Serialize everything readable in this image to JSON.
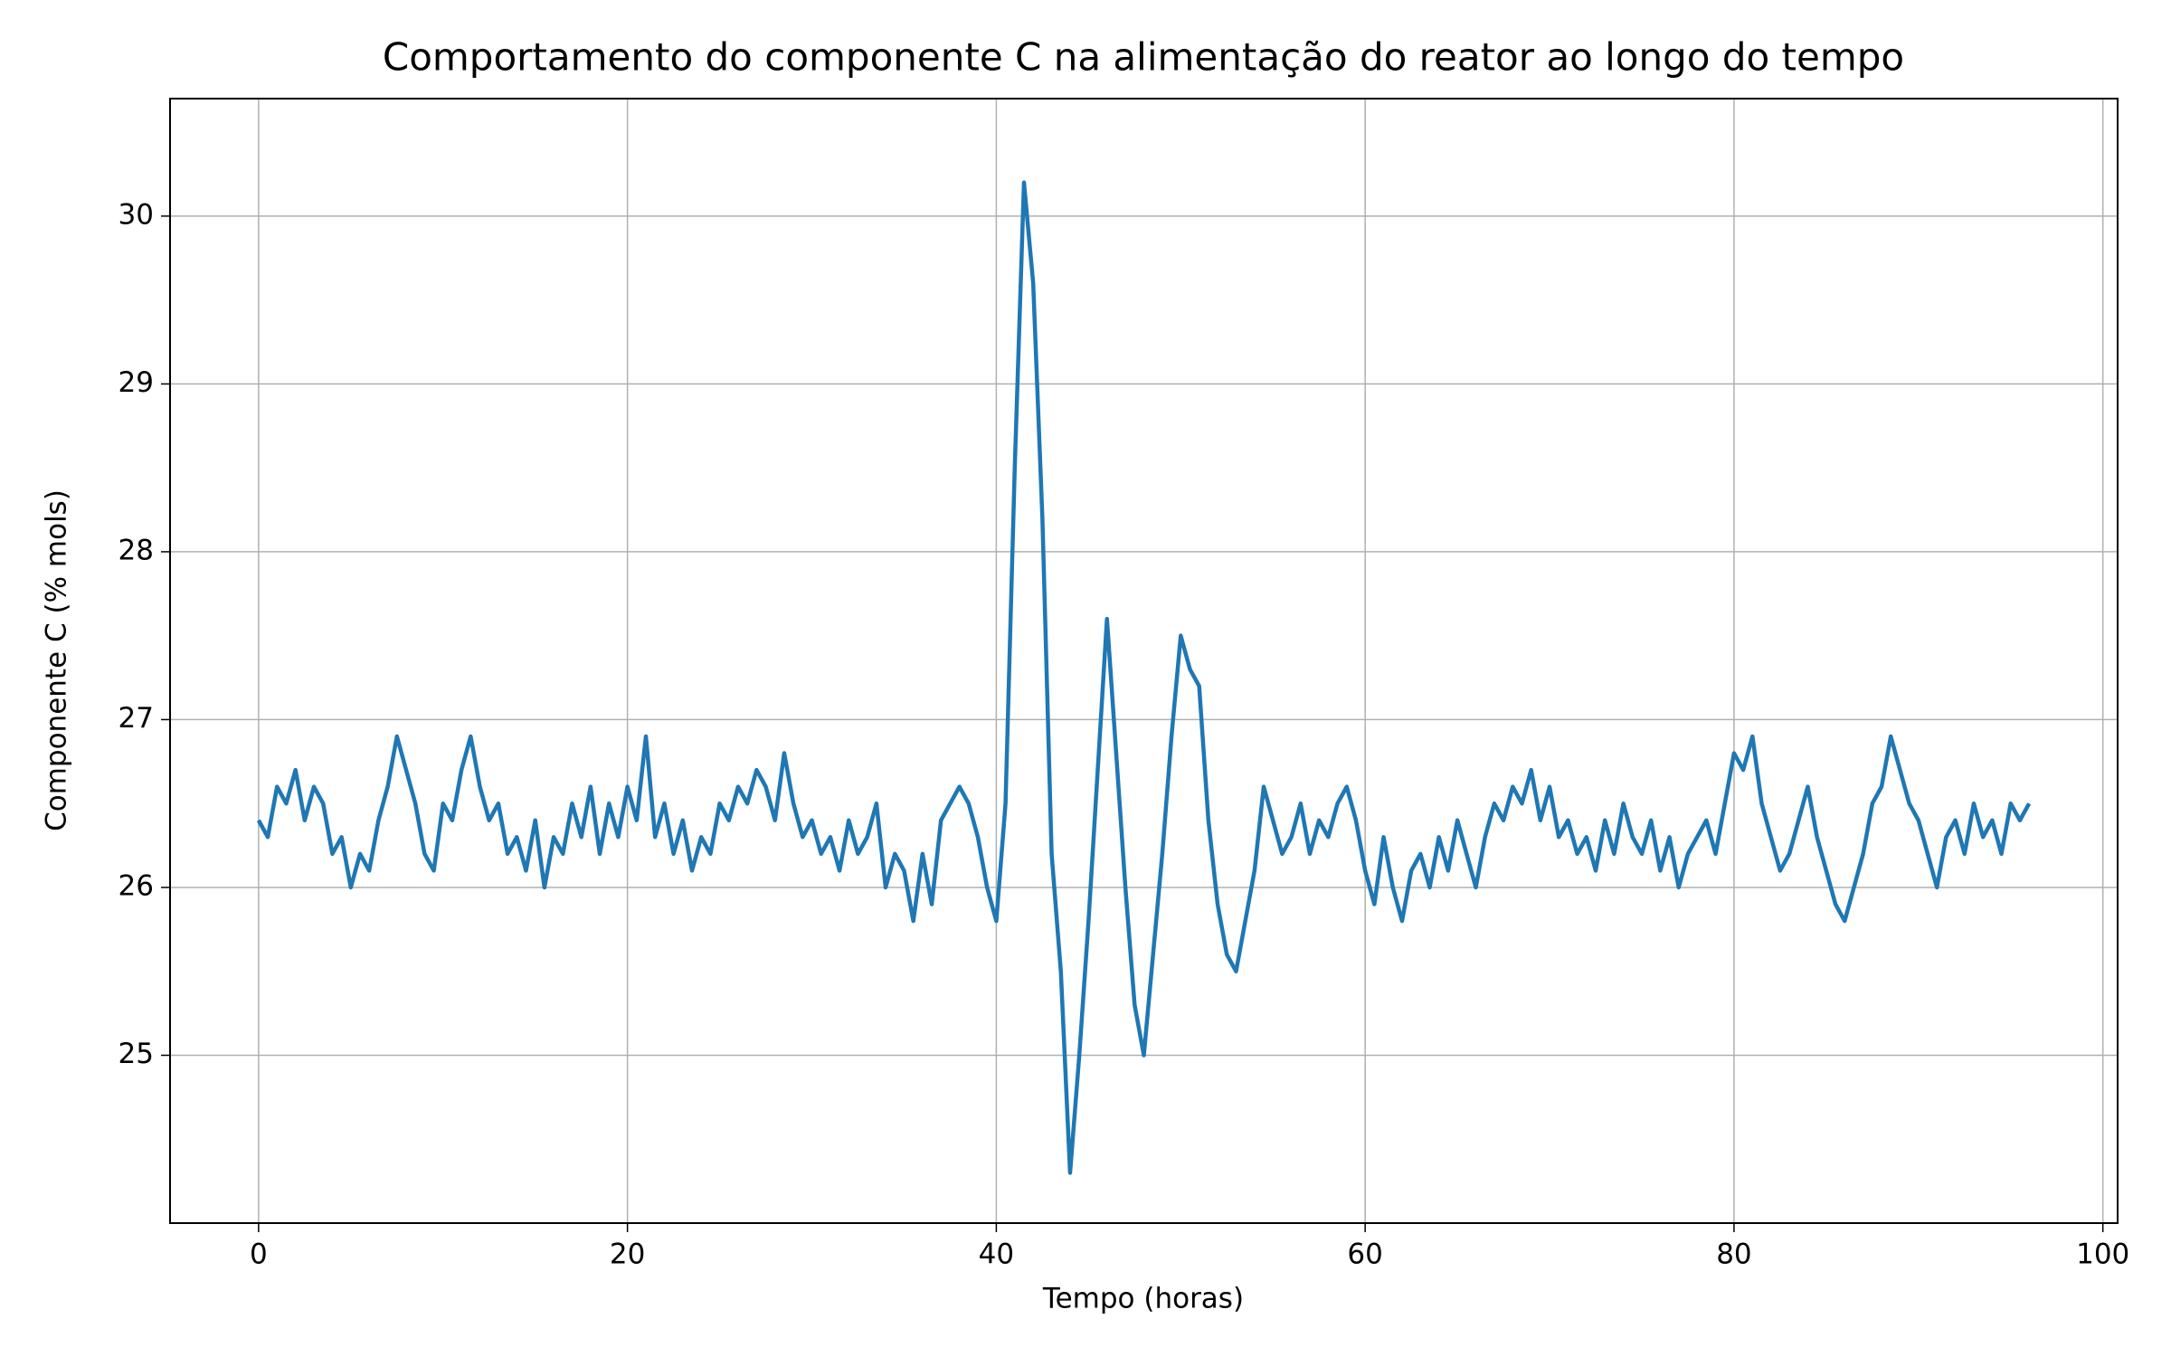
{
  "chart_data": {
    "type": "line",
    "title": "Comportamento do componente C na alimentação do reator ao longo do tempo",
    "xlabel": "Tempo (horas)",
    "ylabel": "Componente C (% mols)",
    "color": "#1f77b4",
    "grid": true,
    "xlim": [
      -4.8,
      100.8
    ],
    "ylim": [
      24.0,
      30.7
    ],
    "xticks": [
      0,
      20,
      40,
      60,
      80,
      100
    ],
    "yticks": [
      25,
      26,
      27,
      28,
      29,
      30
    ],
    "x": [
      0,
      0.5,
      1,
      1.5,
      2,
      2.5,
      3,
      3.5,
      4,
      4.5,
      5,
      5.5,
      6,
      6.5,
      7,
      7.5,
      8,
      8.5,
      9,
      9.5,
      10,
      10.5,
      11,
      11.5,
      12,
      12.5,
      13,
      13.5,
      14,
      14.5,
      15,
      15.5,
      16,
      16.5,
      17,
      17.5,
      18,
      18.5,
      19,
      19.5,
      20,
      20.5,
      21,
      21.5,
      22,
      22.5,
      23,
      23.5,
      24,
      24.5,
      25,
      25.5,
      26,
      26.5,
      27,
      27.5,
      28,
      28.5,
      29,
      29.5,
      30,
      30.5,
      31,
      31.5,
      32,
      32.5,
      33,
      33.5,
      34,
      34.5,
      35,
      35.5,
      36,
      36.5,
      37,
      37.5,
      38,
      38.5,
      39,
      39.5,
      40,
      40.5,
      41,
      41.5,
      42,
      42.5,
      43,
      43.5,
      44,
      44.5,
      45,
      45.5,
      46,
      46.5,
      47,
      47.5,
      48,
      48.5,
      49,
      49.5,
      50,
      50.5,
      51,
      51.5,
      52,
      52.5,
      53,
      53.5,
      54,
      54.5,
      55,
      55.5,
      56,
      56.5,
      57,
      57.5,
      58,
      58.5,
      59,
      59.5,
      60,
      60.5,
      61,
      61.5,
      62,
      62.5,
      63,
      63.5,
      64,
      64.5,
      65,
      65.5,
      66,
      66.5,
      67,
      67.5,
      68,
      68.5,
      69,
      69.5,
      70,
      70.5,
      71,
      71.5,
      72,
      72.5,
      73,
      73.5,
      74,
      74.5,
      75,
      75.5,
      76,
      76.5,
      77,
      77.5,
      78,
      78.5,
      79,
      79.5,
      80,
      80.5,
      81,
      81.5,
      82,
      82.5,
      83,
      83.5,
      84,
      84.5,
      85,
      85.5,
      86,
      86.5,
      87,
      87.5,
      88,
      88.5,
      89,
      89.5,
      90,
      90.5,
      91,
      91.5,
      92,
      92.5,
      93,
      93.5,
      94,
      94.5,
      95,
      95.5,
      96
    ],
    "values": [
      26.4,
      26.3,
      26.6,
      26.5,
      26.7,
      26.4,
      26.6,
      26.5,
      26.2,
      26.3,
      26.0,
      26.2,
      26.1,
      26.4,
      26.6,
      26.9,
      26.7,
      26.5,
      26.2,
      26.1,
      26.5,
      26.4,
      26.7,
      26.9,
      26.6,
      26.4,
      26.5,
      26.2,
      26.3,
      26.1,
      26.4,
      26.0,
      26.3,
      26.2,
      26.5,
      26.3,
      26.6,
      26.2,
      26.5,
      26.3,
      26.6,
      26.4,
      26.9,
      26.3,
      26.5,
      26.2,
      26.4,
      26.1,
      26.3,
      26.2,
      26.5,
      26.4,
      26.6,
      26.5,
      26.7,
      26.6,
      26.4,
      26.8,
      26.5,
      26.3,
      26.4,
      26.2,
      26.3,
      26.1,
      26.4,
      26.2,
      26.3,
      26.5,
      26.0,
      26.2,
      26.1,
      25.8,
      26.2,
      25.9,
      26.4,
      26.5,
      26.6,
      26.5,
      26.3,
      26.0,
      25.8,
      26.5,
      28.5,
      30.2,
      29.6,
      28.2,
      26.2,
      25.5,
      24.3,
      25.0,
      25.8,
      26.7,
      27.6,
      26.8,
      26.0,
      25.3,
      25.0,
      25.6,
      26.2,
      26.9,
      27.5,
      27.3,
      27.2,
      26.4,
      25.9,
      25.6,
      25.5,
      25.8,
      26.1,
      26.6,
      26.4,
      26.2,
      26.3,
      26.5,
      26.2,
      26.4,
      26.3,
      26.5,
      26.6,
      26.4,
      26.1,
      25.9,
      26.3,
      26.0,
      25.8,
      26.1,
      26.2,
      26.0,
      26.3,
      26.1,
      26.4,
      26.2,
      26.0,
      26.3,
      26.5,
      26.4,
      26.6,
      26.5,
      26.7,
      26.4,
      26.6,
      26.3,
      26.4,
      26.2,
      26.3,
      26.1,
      26.4,
      26.2,
      26.5,
      26.3,
      26.2,
      26.4,
      26.1,
      26.3,
      26.0,
      26.2,
      26.3,
      26.4,
      26.2,
      26.5,
      26.8,
      26.7,
      26.9,
      26.5,
      26.3,
      26.1,
      26.2,
      26.4,
      26.6,
      26.3,
      26.1,
      25.9,
      25.8,
      26.0,
      26.2,
      26.5,
      26.6,
      26.9,
      26.7,
      26.5,
      26.4,
      26.2,
      26.0,
      26.3,
      26.4,
      26.2,
      26.5,
      26.3,
      26.4,
      26.2,
      26.5,
      26.4,
      26.5
    ]
  }
}
